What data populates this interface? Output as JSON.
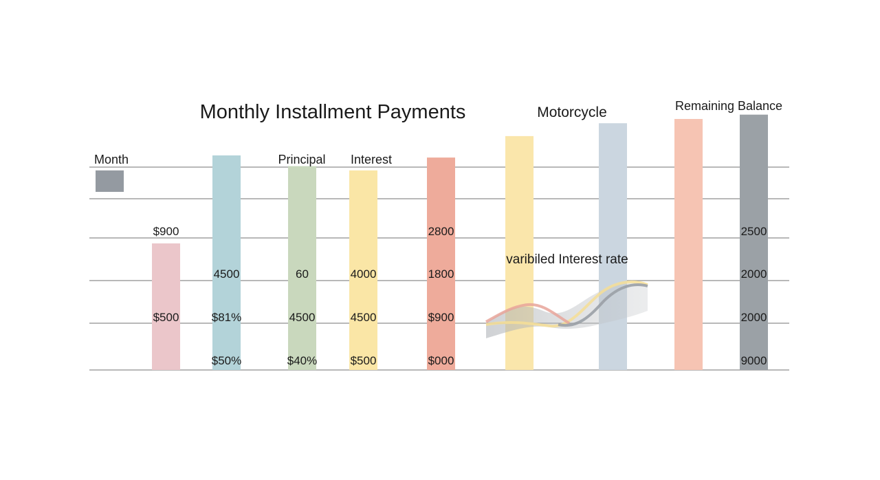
{
  "chart_data": {
    "type": "bar",
    "title": "Monthly Installment Payments",
    "subtitle": "Motorcycle",
    "column_headers": [
      {
        "text": "Month"
      },
      {
        "text": "Principal"
      },
      {
        "text": "Interest"
      },
      {
        "text": "Remaining Balance"
      }
    ],
    "bars": [
      {
        "value": 0.93,
        "base": 0.83,
        "color": "#949aa1"
      },
      {
        "value": 0.59,
        "base": 0.0,
        "color": "#ebc6ca"
      },
      {
        "value": 1.0,
        "base": 0.0,
        "color": "#b3d3d9"
      },
      {
        "value": 0.95,
        "base": 0.0,
        "color": "#c9d8bd"
      },
      {
        "value": 0.93,
        "base": 0.0,
        "color": "#fae6a6"
      },
      {
        "value": 0.99,
        "base": 0.0,
        "color": "#eeab9b"
      },
      {
        "value": 1.09,
        "base": 0.0,
        "color": "#fae6ab"
      },
      {
        "value": 1.15,
        "base": 0.0,
        "color": "#cbd6e0"
      },
      {
        "value": 1.17,
        "base": 0.0,
        "color": "#f6c4b3"
      },
      {
        "value": 1.19,
        "base": 0.0,
        "color": "#9ba1a6"
      }
    ],
    "value_labels": [
      {
        "text": "$900",
        "col": 1,
        "row": 4
      },
      {
        "text": "$500",
        "col": 1,
        "row": 2
      },
      {
        "text": "4500",
        "col": 2,
        "row": 3
      },
      {
        "text": "$81%",
        "col": 2,
        "row": 2
      },
      {
        "text": "$50%",
        "col": 2,
        "row": 1
      },
      {
        "text": "60",
        "col": 3,
        "row": 3
      },
      {
        "text": "4500",
        "col": 3,
        "row": 2
      },
      {
        "text": "$40%",
        "col": 3,
        "row": 1
      },
      {
        "text": "4000",
        "col": 4,
        "row": 3
      },
      {
        "text": "4500",
        "col": 4,
        "row": 2
      },
      {
        "text": "$500",
        "col": 4,
        "row": 1
      },
      {
        "text": "2800",
        "col": 5,
        "row": 4
      },
      {
        "text": "1800",
        "col": 5,
        "row": 3
      },
      {
        "text": "$900",
        "col": 5,
        "row": 2
      },
      {
        "text": "$000",
        "col": 5,
        "row": 1
      },
      {
        "text": "2500",
        "col": 9,
        "row": 4
      },
      {
        "text": "2000",
        "col": 9,
        "row": 3
      },
      {
        "text": "2000",
        "col": 9,
        "row": 2
      },
      {
        "text": "9000",
        "col": 9,
        "row": 1
      }
    ],
    "annotation": {
      "text": "varibiled Interest rate"
    },
    "grid": true
  }
}
